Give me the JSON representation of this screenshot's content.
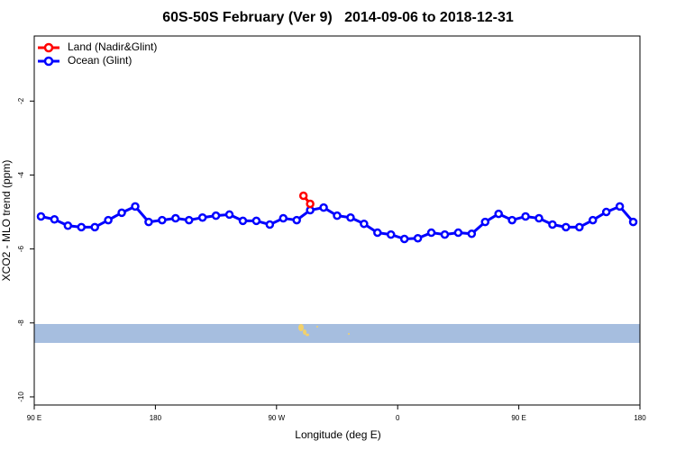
{
  "chart_data": {
    "type": "line",
    "title": "60S-50S February (Ver 9)   2014-09-06 to 2018-12-31",
    "x_label": "Longitude (deg E)",
    "y_label": "XCO2 - MLO trend (ppm)",
    "xlim": [
      90,
      540
    ],
    "xticks": [
      {
        "value": 90,
        "label": "90 E"
      },
      180,
      {
        "value": 270,
        "label": "90 W"
      },
      {
        "value": 360,
        "label": "0"
      },
      {
        "value": 450,
        "label": "90 E"
      },
      {
        "value": 540,
        "label": "180"
      }
    ],
    "ylim": [
      -10.22,
      -0.24
    ],
    "yticks": [
      -10,
      -8,
      -6,
      -4,
      -2
    ],
    "legend": "top-left",
    "series": [
      {
        "name": "Land (Nadir&Glint)",
        "color": "#ff0000",
        "x": [
          290,
          295
        ],
        "values": [
          -4.56,
          -4.78
        ]
      },
      {
        "name": "Ocean (Glint)",
        "color": "#0000ff",
        "x": [
          95,
          105,
          115,
          125,
          135,
          145,
          155,
          165,
          175,
          185,
          195,
          205,
          215,
          225,
          235,
          245,
          255,
          265,
          275,
          285,
          295,
          305,
          315,
          325,
          335,
          345,
          355,
          365,
          375,
          385,
          395,
          405,
          415,
          425,
          435,
          445,
          455,
          465,
          475,
          485,
          495,
          505,
          515,
          525,
          535
        ],
        "values": [
          -5.12,
          -5.2,
          -5.37,
          -5.41,
          -5.41,
          -5.22,
          -5.02,
          -4.85,
          -5.27,
          -5.22,
          -5.17,
          -5.22,
          -5.15,
          -5.1,
          -5.07,
          -5.24,
          -5.24,
          -5.34,
          -5.17,
          -5.22,
          -4.95,
          -4.88,
          -5.1,
          -5.15,
          -5.32,
          -5.56,
          -5.61,
          -5.73,
          -5.71,
          -5.56,
          -5.61,
          -5.56,
          -5.59,
          -5.27,
          -5.05,
          -5.22,
          -5.12,
          -5.17,
          -5.34,
          -5.41,
          -5.41,
          -5.22,
          -5.0,
          -4.85,
          -5.27
        ]
      }
    ]
  }
}
